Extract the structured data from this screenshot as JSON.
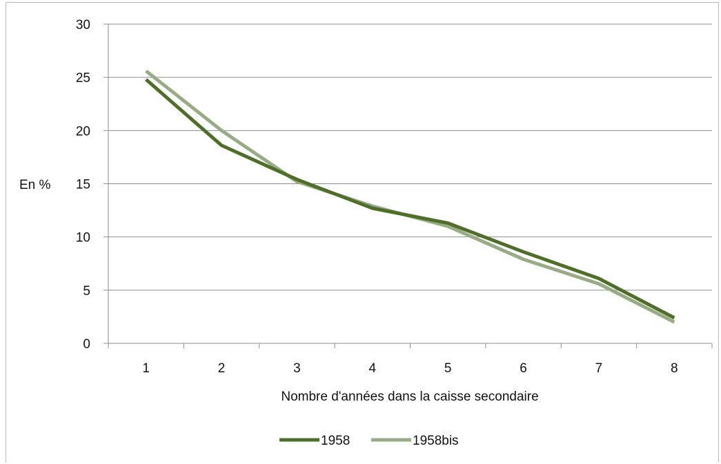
{
  "chart_data": {
    "type": "line",
    "title": "",
    "xlabel": "Nombre d'années dans la caisse secondaire",
    "ylabel": "En %",
    "categories": [
      "1",
      "2",
      "3",
      "4",
      "5",
      "6",
      "7",
      "8"
    ],
    "ylim": [
      0,
      30
    ],
    "yticks": [
      "0",
      "5",
      "10",
      "15",
      "20",
      "25",
      "30"
    ],
    "grid": "horizontal",
    "legend_position": "bottom",
    "series": [
      {
        "name": "1958",
        "color": "#4f6e2a",
        "values": [
          24.8,
          18.6,
          15.4,
          12.7,
          11.3,
          8.6,
          6.1,
          2.4
        ]
      },
      {
        "name": "1958bis",
        "color": "#98ab86",
        "values": [
          25.6,
          20.0,
          15.2,
          12.9,
          11.0,
          7.9,
          5.6,
          2.0
        ]
      }
    ]
  }
}
